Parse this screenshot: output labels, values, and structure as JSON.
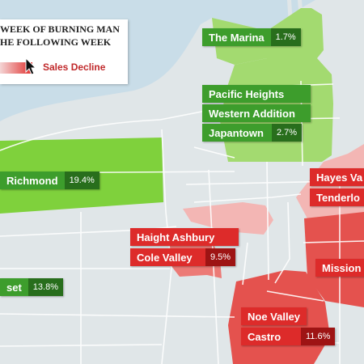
{
  "legend": {
    "line1": "WEEK OF BURNING MAN",
    "line2": "HE FOLLOWING WEEK",
    "decline_label": "Sales Decline",
    "gradient_from": "#f4d5d5",
    "gradient_to": "#e0302e"
  },
  "colors": {
    "water": "#c9dde8",
    "land": "#e0e6e8",
    "green_light": "#a3da70",
    "green_bright": "#7fd13c",
    "red_light": "#f3b6b4",
    "red_mid": "#ec7a76",
    "red_strong": "#e4524e"
  },
  "neighborhoods": [
    {
      "id": "marina",
      "name": "The Marina",
      "value": "1.7%",
      "trend": "increase"
    },
    {
      "id": "pacific-heights",
      "name": "Pacific Heights",
      "value": "",
      "trend": "increase"
    },
    {
      "id": "western-addition",
      "name": "Western Addition",
      "value": "",
      "trend": "increase"
    },
    {
      "id": "japantown",
      "name": "Japantown",
      "value": "2.7%",
      "trend": "increase"
    },
    {
      "id": "richmond",
      "name": "Richmond",
      "value": "19.4%",
      "trend": "increase"
    },
    {
      "id": "sunset",
      "name": "set",
      "value": "13.8%",
      "trend": "increase"
    },
    {
      "id": "hayes-valley",
      "name": "Hayes Va",
      "value": "",
      "trend": "decline"
    },
    {
      "id": "tenderloin",
      "name": "Tenderlo",
      "value": "",
      "trend": "decline"
    },
    {
      "id": "haight-ashbury",
      "name": "Haight Ashbury",
      "value": "",
      "trend": "decline"
    },
    {
      "id": "cole-valley",
      "name": "Cole Valley",
      "value": "9.5%",
      "trend": "decline"
    },
    {
      "id": "mission",
      "name": "Mission",
      "value": "",
      "trend": "decline"
    },
    {
      "id": "noe-valley",
      "name": "Noe Valley",
      "value": "",
      "trend": "decline"
    },
    {
      "id": "castro",
      "name": "Castro",
      "value": "11.6%",
      "trend": "decline"
    }
  ]
}
